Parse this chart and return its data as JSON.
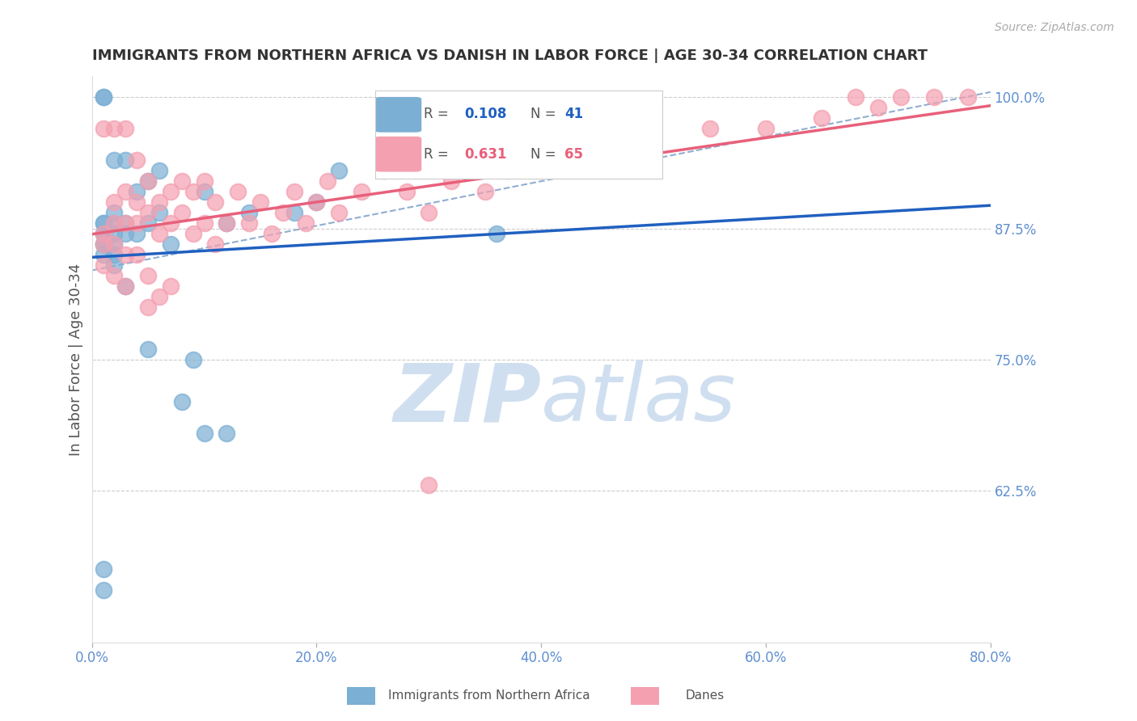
{
  "title": "IMMIGRANTS FROM NORTHERN AFRICA VS DANISH IN LABOR FORCE | AGE 30-34 CORRELATION CHART",
  "source": "Source: ZipAtlas.com",
  "xlabel_bottom": "",
  "ylabel": "In Labor Force | Age 30-34",
  "x_tick_labels": [
    "0.0%",
    "20.0%",
    "40.0%",
    "60.0%",
    "80.0%"
  ],
  "x_tick_values": [
    0.0,
    0.2,
    0.4,
    0.6,
    0.8
  ],
  "y_tick_labels": [
    "62.5%",
    "75.0%",
    "87.5%",
    "100.0%"
  ],
  "y_tick_values": [
    0.625,
    0.75,
    0.875,
    1.0
  ],
  "xlim": [
    0.0,
    0.8
  ],
  "ylim": [
    0.48,
    1.02
  ],
  "legend_blue_label": "Immigrants from Northern Africa",
  "legend_pink_label": "Danes",
  "R_blue": 0.108,
  "N_blue": 41,
  "R_pink": 0.631,
  "N_pink": 65,
  "blue_color": "#7bafd4",
  "pink_color": "#f4a0b0",
  "blue_line_color": "#2060c0",
  "pink_line_color": "#e8607a",
  "dashed_line_color": "#90aed0",
  "grid_color": "#cccccc",
  "title_color": "#333333",
  "axis_label_color": "#555555",
  "tick_label_color": "#6090d0",
  "watermark_color": "#d0dff0",
  "blue_scatter_x": [
    0.01,
    0.01,
    0.01,
    0.01,
    0.01,
    0.01,
    0.01,
    0.02,
    0.02,
    0.02,
    0.02,
    0.02,
    0.02,
    0.03,
    0.03,
    0.03,
    0.04,
    0.04,
    0.05,
    0.05,
    0.05,
    0.06,
    0.06,
    0.07,
    0.08,
    0.09,
    0.1,
    0.12,
    0.12,
    0.14,
    0.02,
    0.03,
    0.01,
    0.01,
    0.01,
    0.01,
    0.2,
    0.22,
    0.1,
    0.18,
    0.36
  ],
  "blue_scatter_y": [
    0.88,
    0.88,
    0.87,
    0.87,
    0.86,
    0.86,
    0.85,
    0.89,
    0.88,
    0.87,
    0.86,
    0.85,
    0.84,
    0.88,
    0.87,
    0.82,
    0.91,
    0.87,
    0.92,
    0.88,
    0.76,
    0.93,
    0.89,
    0.86,
    0.71,
    0.75,
    0.68,
    0.88,
    0.68,
    0.89,
    0.94,
    0.94,
    1.0,
    1.0,
    0.55,
    0.53,
    0.9,
    0.93,
    0.91,
    0.89,
    0.87
  ],
  "pink_scatter_x": [
    0.01,
    0.01,
    0.01,
    0.02,
    0.02,
    0.02,
    0.02,
    0.03,
    0.03,
    0.03,
    0.03,
    0.04,
    0.04,
    0.04,
    0.05,
    0.05,
    0.05,
    0.06,
    0.06,
    0.07,
    0.07,
    0.08,
    0.08,
    0.09,
    0.09,
    0.1,
    0.1,
    0.11,
    0.11,
    0.12,
    0.13,
    0.14,
    0.15,
    0.16,
    0.17,
    0.18,
    0.19,
    0.2,
    0.21,
    0.22,
    0.24,
    0.26,
    0.28,
    0.3,
    0.32,
    0.35,
    0.37,
    0.4,
    0.5,
    0.55,
    0.6,
    0.65,
    0.7,
    0.75,
    0.78,
    0.01,
    0.02,
    0.03,
    0.04,
    0.05,
    0.06,
    0.07,
    0.3,
    0.68,
    0.72
  ],
  "pink_scatter_y": [
    0.87,
    0.86,
    0.84,
    0.9,
    0.88,
    0.86,
    0.83,
    0.91,
    0.88,
    0.85,
    0.82,
    0.9,
    0.88,
    0.85,
    0.92,
    0.89,
    0.83,
    0.9,
    0.87,
    0.91,
    0.88,
    0.92,
    0.89,
    0.91,
    0.87,
    0.92,
    0.88,
    0.9,
    0.86,
    0.88,
    0.91,
    0.88,
    0.9,
    0.87,
    0.89,
    0.91,
    0.88,
    0.9,
    0.92,
    0.89,
    0.91,
    0.93,
    0.91,
    0.89,
    0.92,
    0.91,
    0.93,
    0.93,
    0.96,
    0.97,
    0.97,
    0.98,
    0.99,
    1.0,
    1.0,
    0.97,
    0.97,
    0.97,
    0.94,
    0.8,
    0.81,
    0.82,
    0.63,
    1.0,
    1.0
  ]
}
